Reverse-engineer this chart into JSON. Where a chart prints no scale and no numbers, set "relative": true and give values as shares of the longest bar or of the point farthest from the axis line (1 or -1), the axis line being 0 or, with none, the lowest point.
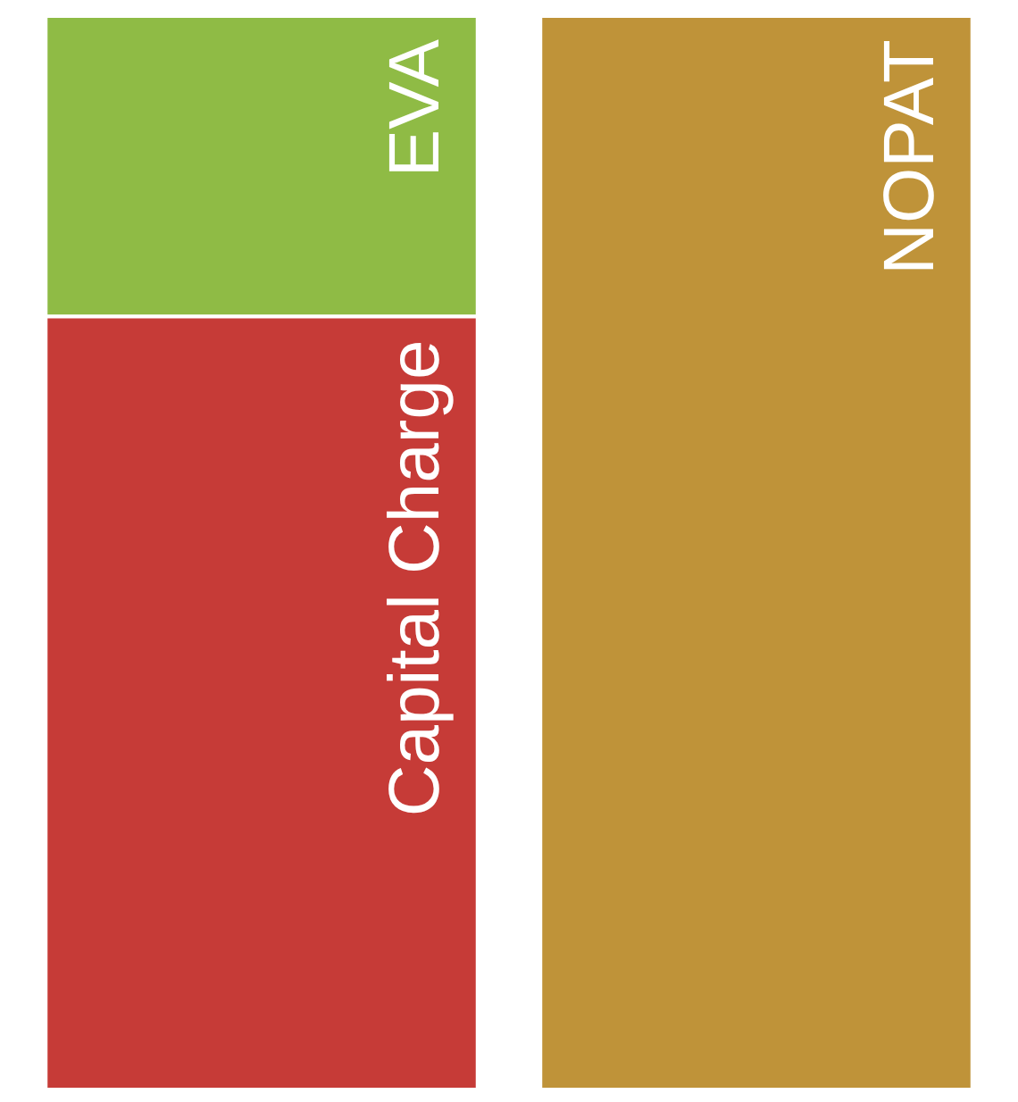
{
  "chart_data": {
    "type": "bar",
    "relative": true,
    "stacked": true,
    "categories": [
      null,
      null
    ],
    "legend": false,
    "series": [
      {
        "name": "Capital Charge",
        "color": "#c63b37",
        "values": [
          0.72,
          null
        ]
      },
      {
        "name": "EVA",
        "color": "#8fbb45",
        "values": [
          0.28,
          null
        ]
      },
      {
        "name": "NOPAT",
        "color": "#bf9339",
        "values": [
          null,
          1
        ]
      }
    ]
  }
}
